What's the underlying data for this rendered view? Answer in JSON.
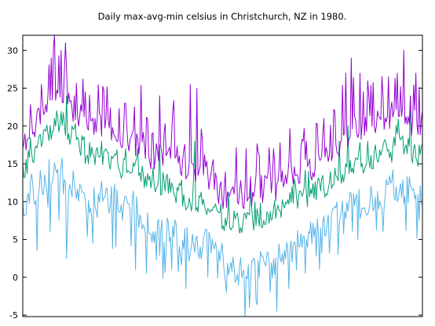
{
  "chart_data": {
    "type": "line",
    "title": "Daily max-avg-min celsius in Christchurch, NZ in 1980.",
    "xlabel": "",
    "ylabel": "",
    "xlim": [
      1,
      366
    ],
    "ylim": [
      -5.2,
      32
    ],
    "y_ticks": [
      -5,
      0,
      5,
      10,
      15,
      20,
      25,
      30
    ],
    "x_ticks_labeled": false,
    "grid": false,
    "legend": "none",
    "days": 366,
    "series": [
      {
        "color": "#9400d3",
        "anchors": [
          [
            1,
            17
          ],
          [
            15,
            21
          ],
          [
            30,
            25
          ],
          [
            45,
            23
          ],
          [
            60,
            20
          ],
          [
            75,
            20
          ],
          [
            90,
            19
          ],
          [
            105,
            18
          ],
          [
            120,
            16
          ],
          [
            135,
            16
          ],
          [
            150,
            15
          ],
          [
            165,
            14
          ],
          [
            175,
            13
          ],
          [
            185,
            11
          ],
          [
            195,
            11
          ],
          [
            205,
            11
          ],
          [
            215,
            12
          ],
          [
            230,
            12
          ],
          [
            245,
            14
          ],
          [
            260,
            14
          ],
          [
            275,
            16
          ],
          [
            290,
            18
          ],
          [
            305,
            20
          ],
          [
            320,
            20
          ],
          [
            335,
            21
          ],
          [
            350,
            21
          ],
          [
            366,
            20
          ]
        ],
        "peaks": [
          [
            9,
            21
          ],
          [
            18,
            25.5
          ],
          [
            27,
            29
          ],
          [
            30,
            32
          ],
          [
            36,
            30
          ],
          [
            40,
            31
          ],
          [
            48,
            24
          ],
          [
            67,
            21
          ],
          [
            95,
            23
          ],
          [
            115,
            21
          ],
          [
            126,
            24
          ],
          [
            154,
            25.5
          ],
          [
            160,
            25
          ],
          [
            205,
            17
          ],
          [
            230,
            17
          ],
          [
            257,
            18
          ],
          [
            276,
            21
          ],
          [
            286,
            22
          ],
          [
            296,
            27
          ],
          [
            301,
            29
          ],
          [
            309,
            27
          ],
          [
            316,
            26
          ],
          [
            343,
            27
          ],
          [
            349,
            30
          ],
          [
            360,
            27
          ]
        ],
        "noise": 1.8,
        "spike_prob": 0.18,
        "spike_amp": 6.5,
        "seed": 11
      },
      {
        "color": "#009e73",
        "anchors": [
          [
            1,
            14
          ],
          [
            15,
            17
          ],
          [
            30,
            20
          ],
          [
            45,
            19
          ],
          [
            60,
            16
          ],
          [
            75,
            16
          ],
          [
            90,
            15
          ],
          [
            105,
            14
          ],
          [
            120,
            12
          ],
          [
            135,
            12
          ],
          [
            150,
            10.5
          ],
          [
            165,
            9.5
          ],
          [
            175,
            8.5
          ],
          [
            185,
            7.5
          ],
          [
            195,
            6.5
          ],
          [
            205,
            7
          ],
          [
            215,
            8
          ],
          [
            230,
            8.5
          ],
          [
            245,
            10
          ],
          [
            260,
            10.5
          ],
          [
            275,
            12
          ],
          [
            290,
            13.5
          ],
          [
            305,
            15
          ],
          [
            320,
            15.5
          ],
          [
            335,
            16.5
          ],
          [
            350,
            17
          ],
          [
            366,
            16
          ]
        ],
        "peaks": [
          [
            20,
            19.5
          ],
          [
            30,
            21
          ],
          [
            41,
            24
          ],
          [
            73,
            18
          ],
          [
            95,
            17
          ],
          [
            126,
            17.5
          ],
          [
            158,
            18
          ],
          [
            209,
            12
          ],
          [
            262,
            14
          ],
          [
            290,
            18
          ],
          [
            298,
            20
          ],
          [
            316,
            18
          ],
          [
            343,
            19
          ],
          [
            355,
            24
          ]
        ],
        "noise": 1.5,
        "spike_prob": 0.1,
        "spike_amp": 3.0,
        "seed": 23
      },
      {
        "color": "#56b4e9",
        "anchors": [
          [
            1,
            10
          ],
          [
            15,
            12
          ],
          [
            30,
            14
          ],
          [
            45,
            13
          ],
          [
            60,
            11
          ],
          [
            75,
            10.5
          ],
          [
            90,
            9.5
          ],
          [
            105,
            9
          ],
          [
            120,
            7
          ],
          [
            135,
            6.5
          ],
          [
            150,
            5
          ],
          [
            165,
            4
          ],
          [
            175,
            3
          ],
          [
            185,
            2
          ],
          [
            195,
            1.5
          ],
          [
            205,
            0
          ],
          [
            215,
            1
          ],
          [
            230,
            2
          ],
          [
            245,
            3.5
          ],
          [
            260,
            5
          ],
          [
            275,
            7
          ],
          [
            290,
            8.5
          ],
          [
            305,
            9.5
          ],
          [
            320,
            10.5
          ],
          [
            335,
            11.5
          ],
          [
            350,
            12
          ],
          [
            366,
            11
          ]
        ],
        "dips": [
          [
            14,
            3.5
          ],
          [
            26,
            6
          ],
          [
            41,
            2.5
          ],
          [
            65,
            4.5
          ],
          [
            86,
            4
          ],
          [
            104,
            1
          ],
          [
            114,
            0.5
          ],
          [
            137,
            1
          ],
          [
            150,
            -1.5
          ],
          [
            170,
            0
          ],
          [
            186,
            -0.5
          ],
          [
            208,
            -4
          ],
          [
            227,
            -2
          ],
          [
            233,
            -4.5
          ],
          [
            244,
            -1.5
          ],
          [
            259,
            0.5
          ],
          [
            272,
            1
          ],
          [
            289,
            3
          ],
          [
            307,
            5
          ],
          [
            330,
            6
          ],
          [
            363,
            7.5
          ]
        ],
        "noise": 2.2,
        "spike_prob": 0.14,
        "spike_amp": -5.5,
        "seed": 37
      }
    ]
  }
}
